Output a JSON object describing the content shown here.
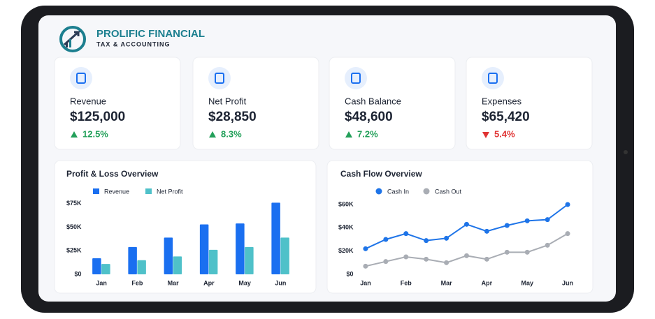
{
  "brand": {
    "name": "PROLIFIC FINANCIAL",
    "tagline": "TAX & ACCOUNTING"
  },
  "kpis": [
    {
      "label": "Revenue",
      "value": "$125,000",
      "change": "12.5%",
      "trend": "up"
    },
    {
      "label": "Net Profit",
      "value": "$28,850",
      "change": "8.3%",
      "trend": "up"
    },
    {
      "label": "Cash Balance",
      "value": "$48,600",
      "change": "7.2%",
      "trend": "up"
    },
    {
      "label": "Expenses",
      "value": "$65,420",
      "change": "5.4%",
      "trend": "down"
    }
  ],
  "chart_data": [
    {
      "type": "bar",
      "title": "Profit & Loss Overview",
      "categories": [
        "Jan",
        "Feb",
        "Mar",
        "Apr",
        "May",
        "Jun"
      ],
      "series": [
        {
          "name": "Revenue",
          "color": "#1a6ff0",
          "values": [
            17000,
            29000,
            39000,
            53000,
            54000,
            76000
          ]
        },
        {
          "name": "Net Profit",
          "color": "#4fc1c9",
          "values": [
            11000,
            15000,
            19000,
            26000,
            29000,
            39000
          ]
        }
      ],
      "ylim": [
        0,
        80000
      ],
      "yticks": [
        {
          "value": 0,
          "label": "$0"
        },
        {
          "value": 25000,
          "label": "$25K"
        },
        {
          "value": 50000,
          "label": "$50K"
        },
        {
          "value": 75000,
          "label": "$75K"
        }
      ]
    },
    {
      "type": "line",
      "title": "Cash Flow Overview",
      "categories": [
        "Jan",
        null,
        "Feb",
        null,
        "Mar",
        null,
        "Apr",
        null,
        "May",
        null,
        "Jun"
      ],
      "series": [
        {
          "name": "Cash In",
          "color": "#1e74e8",
          "values": [
            22000,
            30000,
            35000,
            29000,
            31000,
            43000,
            37000,
            42000,
            46000,
            47000,
            60000
          ]
        },
        {
          "name": "Cash Out",
          "color": "#a9adb4",
          "values": [
            7000,
            11000,
            15000,
            13000,
            10000,
            16000,
            13000,
            19000,
            19000,
            25000,
            35000
          ]
        }
      ],
      "ylim": [
        0,
        60000
      ],
      "yticks": [
        {
          "value": 0,
          "label": "$0"
        },
        {
          "value": 20000,
          "label": "$20K"
        },
        {
          "value": 40000,
          "label": "$40K"
        },
        {
          "value": 60000,
          "label": "$60K"
        }
      ]
    }
  ]
}
